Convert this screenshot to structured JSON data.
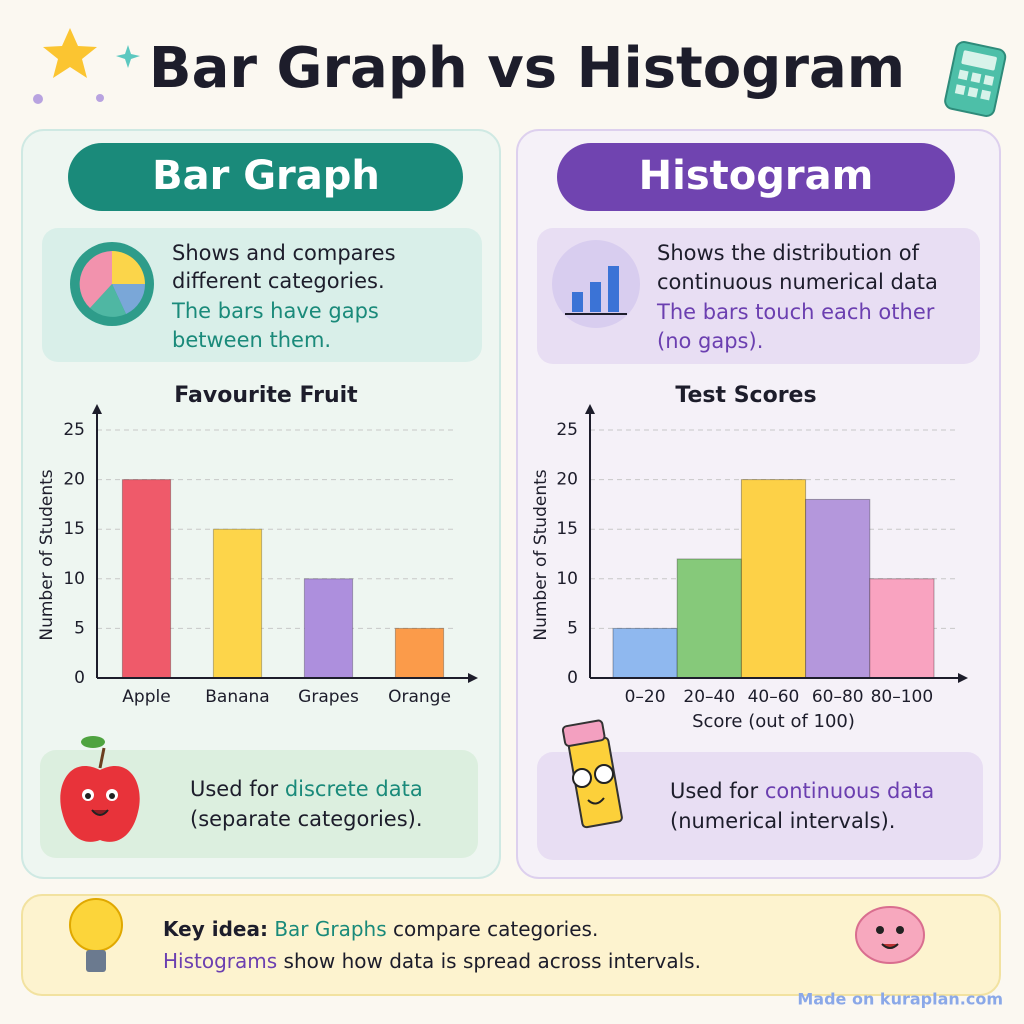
{
  "title": "Bar Graph vs Histogram",
  "panels": [
    {
      "heading": "Bar Graph",
      "description": [
        "Shows and compares",
        "different categories."
      ],
      "highlight": [
        "The bars have gaps",
        "between them."
      ],
      "usage": {
        "prefix": "Used for",
        "term": "discrete data",
        "note": "(separate categories)."
      }
    },
    {
      "heading": "Histogram",
      "description": [
        "Shows the distribution of",
        "continuous numerical data"
      ],
      "highlight": [
        "The bars touch each other",
        "(no gaps)."
      ],
      "usage": {
        "prefix": "Used for",
        "term": "continuous data",
        "note": "(numerical intervals)."
      }
    }
  ],
  "key_idea": {
    "label": "Key idea:",
    "line1": {
      "term": "Bar Graphs",
      "text": "compare categories."
    },
    "line2": {
      "term": "Histograms",
      "text": "show how data is spread across intervals."
    }
  },
  "footer": "Made on kuraplan.com",
  "chart_data": [
    {
      "type": "bar",
      "title": "Favourite Fruit",
      "ylabel": "Number of Students",
      "categories": [
        "Apple",
        "Banana",
        "Grapes",
        "Orange"
      ],
      "values": [
        20,
        15,
        10,
        5
      ],
      "colors": [
        "#ef5a6a",
        "#fdd54a",
        "#ad8fdd",
        "#fb9b4a"
      ],
      "ylim": [
        0,
        25
      ],
      "yticks": [
        0,
        5,
        10,
        15,
        20,
        25
      ],
      "grid": true
    },
    {
      "type": "histogram",
      "title": "Test Scores",
      "ylabel": "Number of Students",
      "xlabel": "Score (out of 100)",
      "categories": [
        "0–20",
        "20–40",
        "40–60",
        "60–80",
        "80–100"
      ],
      "values": [
        5,
        12,
        20,
        18,
        10
      ],
      "colors": [
        "#8fb8ef",
        "#86c97a",
        "#fdd147",
        "#b497dc",
        "#f9a3c0"
      ],
      "ylim": [
        0,
        25
      ],
      "yticks": [
        0,
        5,
        10,
        15,
        20,
        25
      ],
      "grid": true
    }
  ]
}
